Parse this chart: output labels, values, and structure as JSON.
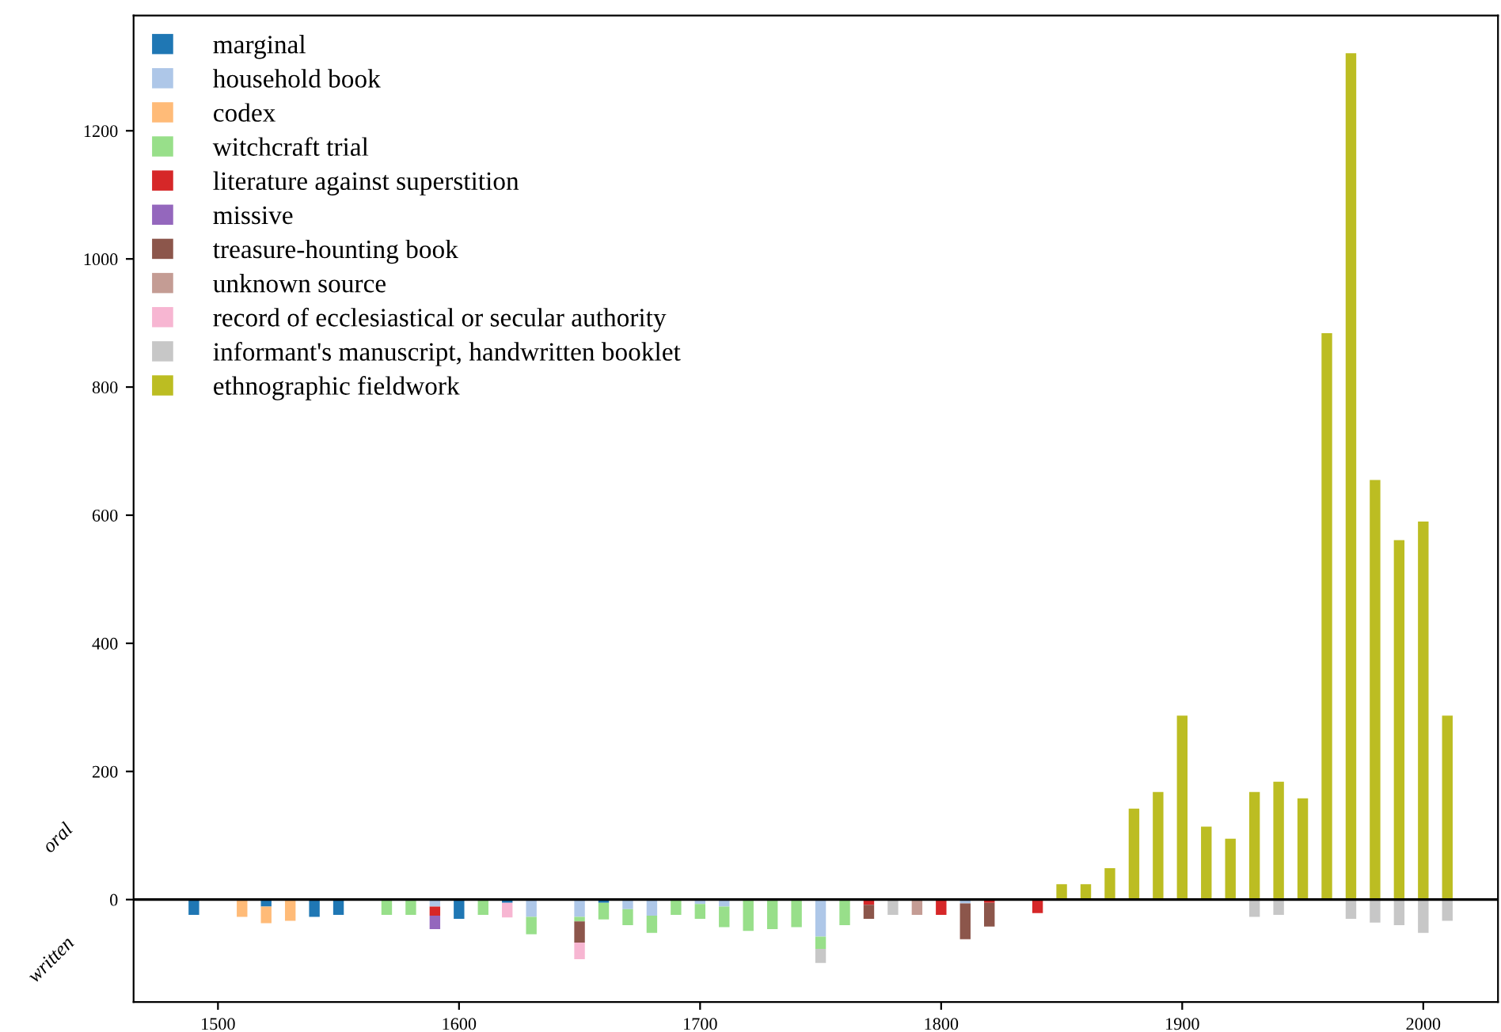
{
  "chart_data": {
    "type": "bar",
    "stacked": true,
    "x": [
      1490,
      1500,
      1510,
      1520,
      1530,
      1540,
      1550,
      1560,
      1570,
      1580,
      1590,
      1600,
      1610,
      1620,
      1630,
      1640,
      1650,
      1660,
      1670,
      1680,
      1690,
      1700,
      1710,
      1720,
      1730,
      1740,
      1750,
      1760,
      1770,
      1780,
      1790,
      1800,
      1810,
      1820,
      1830,
      1840,
      1850,
      1860,
      1870,
      1880,
      1890,
      1900,
      1910,
      1920,
      1930,
      1940,
      1950,
      1960,
      1970,
      1980,
      1990,
      2000,
      2010
    ],
    "xlim": [
      1465,
      2031
    ],
    "xticks": [
      1500,
      1600,
      1700,
      1800,
      1900,
      2000
    ],
    "ylim": [
      -160,
      1380
    ],
    "yticks": [
      0,
      200,
      400,
      600,
      800,
      1000,
      1200
    ],
    "annotations": [
      "oral",
      "written"
    ],
    "ref_lines": [
      {
        "axis": "y",
        "value": 0,
        "color": "#000000"
      }
    ],
    "legend": "top left",
    "series": [
      {
        "name": "marginal",
        "color": "#1f77b4",
        "values": [
          -24,
          null,
          null,
          -11,
          null,
          -27,
          -24,
          null,
          null,
          null,
          null,
          -30,
          null,
          -5,
          null,
          null,
          null,
          -5,
          null,
          null,
          null,
          null,
          null,
          null,
          null,
          null,
          null,
          null,
          null,
          null,
          null,
          null,
          null,
          null,
          null,
          null,
          null,
          null,
          null,
          null,
          null,
          null,
          null,
          null,
          null,
          null,
          null,
          null,
          null,
          null,
          null,
          null,
          null
        ]
      },
      {
        "name": "household book",
        "color": "#aec7e8",
        "values": [
          null,
          null,
          null,
          null,
          null,
          null,
          null,
          null,
          null,
          null,
          -11,
          null,
          null,
          null,
          -27,
          null,
          -27,
          null,
          -15,
          -25,
          null,
          -7,
          -11,
          null,
          null,
          null,
          -58,
          null,
          null,
          null,
          null,
          null,
          -6,
          null,
          null,
          null,
          null,
          null,
          null,
          null,
          null,
          null,
          null,
          null,
          null,
          null,
          null,
          null,
          null,
          null,
          null,
          null,
          null
        ]
      },
      {
        "name": "codex",
        "color": "#ffbb78",
        "values": [
          null,
          null,
          -27,
          -26,
          -33,
          null,
          null,
          null,
          null,
          null,
          null,
          null,
          null,
          null,
          null,
          null,
          null,
          null,
          null,
          null,
          null,
          null,
          null,
          null,
          null,
          null,
          null,
          null,
          null,
          null,
          null,
          null,
          null,
          null,
          null,
          null,
          null,
          null,
          null,
          null,
          null,
          null,
          null,
          null,
          null,
          null,
          null,
          null,
          null,
          null,
          null,
          null,
          null
        ]
      },
      {
        "name": "witchcraft trial",
        "color": "#98df8a",
        "values": [
          null,
          null,
          null,
          null,
          null,
          null,
          null,
          null,
          -24,
          -24,
          null,
          null,
          -24,
          null,
          -27,
          null,
          -7,
          -26,
          -25,
          -27,
          -24,
          -23,
          -32,
          -49,
          -46,
          -43,
          -19,
          -40,
          null,
          null,
          null,
          null,
          null,
          null,
          null,
          null,
          null,
          null,
          null,
          null,
          null,
          null,
          null,
          null,
          null,
          null,
          null,
          null,
          null,
          null,
          null,
          null,
          null
        ]
      },
      {
        "name": "literature against superstition",
        "color": "#d62728",
        "values": [
          null,
          null,
          null,
          null,
          null,
          null,
          null,
          null,
          null,
          null,
          -14,
          null,
          null,
          null,
          null,
          null,
          null,
          null,
          null,
          null,
          null,
          null,
          null,
          null,
          null,
          null,
          null,
          null,
          -8,
          null,
          null,
          -24,
          null,
          -5,
          null,
          -21,
          null,
          null,
          null,
          null,
          null,
          null,
          null,
          null,
          null,
          null,
          null,
          null,
          null,
          null,
          null,
          null,
          null
        ]
      },
      {
        "name": "missive",
        "color": "#9467bd",
        "values": [
          null,
          null,
          null,
          null,
          null,
          null,
          null,
          null,
          null,
          null,
          -21,
          null,
          null,
          null,
          null,
          null,
          null,
          null,
          null,
          null,
          null,
          null,
          null,
          null,
          null,
          null,
          null,
          null,
          null,
          null,
          null,
          null,
          null,
          null,
          null,
          null,
          null,
          null,
          null,
          null,
          null,
          null,
          null,
          null,
          null,
          null,
          null,
          null,
          null,
          null,
          null,
          null,
          null
        ]
      },
      {
        "name": "treasure-hounting book",
        "color": "#8c564b",
        "values": [
          null,
          null,
          null,
          null,
          null,
          null,
          null,
          null,
          null,
          null,
          null,
          null,
          null,
          null,
          null,
          null,
          -33,
          null,
          null,
          null,
          null,
          null,
          null,
          null,
          null,
          null,
          null,
          null,
          -22,
          null,
          null,
          null,
          -56,
          -37,
          null,
          null,
          null,
          null,
          null,
          null,
          null,
          null,
          null,
          null,
          null,
          null,
          null,
          null,
          null,
          null,
          null,
          null,
          null
        ]
      },
      {
        "name": "unknown source",
        "color": "#c49c94",
        "values": [
          null,
          null,
          null,
          null,
          null,
          null,
          null,
          null,
          null,
          null,
          null,
          null,
          null,
          null,
          null,
          null,
          null,
          null,
          null,
          null,
          null,
          null,
          null,
          null,
          null,
          null,
          null,
          null,
          null,
          null,
          -24,
          null,
          null,
          null,
          null,
          null,
          null,
          null,
          null,
          null,
          null,
          null,
          null,
          null,
          null,
          null,
          null,
          null,
          null,
          null,
          null,
          null,
          null
        ]
      },
      {
        "name": "record of ecclesiastical or secular authority",
        "color": "#f7b6d2",
        "values": [
          null,
          null,
          null,
          null,
          null,
          null,
          null,
          null,
          null,
          null,
          null,
          null,
          null,
          -23,
          null,
          null,
          -26,
          null,
          null,
          null,
          null,
          null,
          null,
          null,
          null,
          null,
          null,
          null,
          null,
          null,
          null,
          null,
          null,
          null,
          null,
          null,
          null,
          null,
          null,
          null,
          null,
          null,
          null,
          null,
          null,
          null,
          null,
          null,
          null,
          null,
          null,
          null,
          null
        ]
      },
      {
        "name": "informant's manuscript, handwritten booklet",
        "color": "#c7c7c7",
        "values": [
          null,
          null,
          null,
          null,
          null,
          null,
          null,
          null,
          null,
          null,
          null,
          null,
          null,
          null,
          null,
          null,
          null,
          null,
          null,
          null,
          null,
          null,
          null,
          null,
          null,
          null,
          -22,
          null,
          null,
          -24,
          null,
          null,
          null,
          null,
          null,
          null,
          null,
          null,
          null,
          null,
          null,
          null,
          null,
          null,
          -27,
          -24,
          null,
          null,
          -30,
          -36,
          -40,
          -52,
          -33
        ]
      },
      {
        "name": "ethnographic fieldwork",
        "color": "#bcbd22",
        "values": [
          null,
          null,
          null,
          null,
          null,
          null,
          null,
          null,
          null,
          null,
          null,
          null,
          null,
          null,
          null,
          null,
          null,
          null,
          null,
          null,
          null,
          null,
          null,
          null,
          null,
          null,
          null,
          null,
          null,
          null,
          null,
          null,
          null,
          null,
          null,
          null,
          24,
          24,
          49,
          142,
          168,
          287,
          114,
          95,
          168,
          184,
          158,
          884,
          1321,
          655,
          561,
          590,
          287
        ]
      }
    ]
  }
}
